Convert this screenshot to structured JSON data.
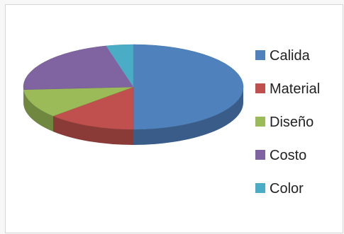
{
  "chart_data": {
    "type": "pie",
    "three_d": true,
    "title": "",
    "legend_position": "right",
    "slices": [
      {
        "label": "Calida",
        "value": 50,
        "color": "#4f81bd"
      },
      {
        "label": "Material",
        "value": 13,
        "color": "#c0504d"
      },
      {
        "label": "Diseño",
        "value": 11,
        "color": "#9bbb59"
      },
      {
        "label": "Costo",
        "value": 22,
        "color": "#8064a2"
      },
      {
        "label": "Color",
        "value": 4,
        "color": "#4bacc6"
      }
    ]
  }
}
